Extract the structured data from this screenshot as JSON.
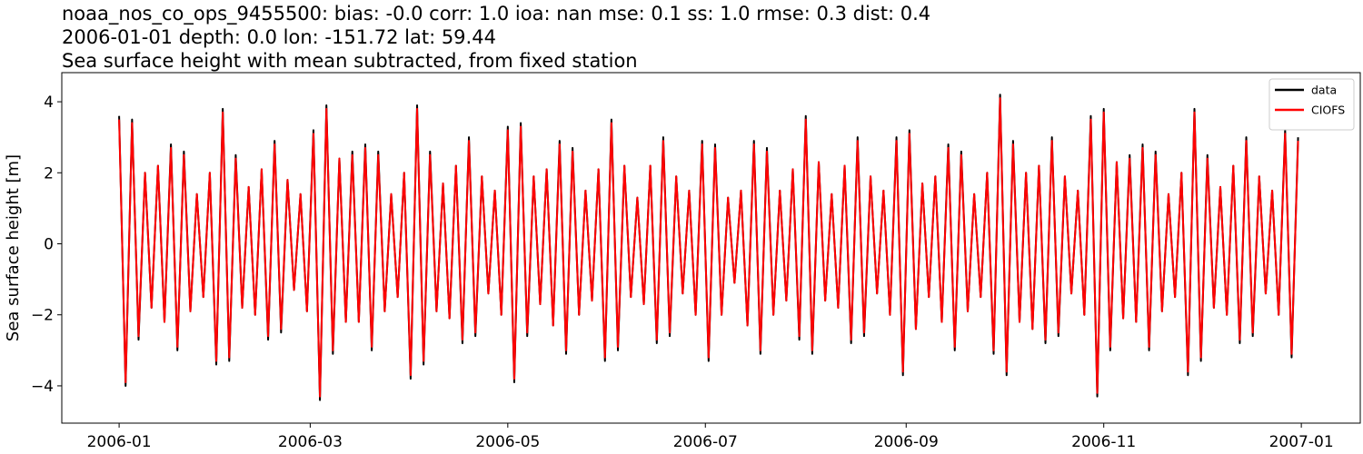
{
  "chart_data": {
    "type": "line",
    "title": [
      "noaa_nos_co_ops_9455500: bias: -0.0  corr: 1.0  ioa: nan  mse: 0.1  ss: 1.0  rmse: 0.3  dist: 0.4",
      "2006-01-01 depth: 0.0 lon: -151.72 lat: 59.44",
      "Sea surface height with mean subtracted, from fixed station"
    ],
    "y_label": "Sea surface height [m]",
    "x": [
      0,
      2,
      4,
      6,
      8,
      10,
      12,
      14,
      16,
      18,
      20,
      22,
      24,
      26,
      28,
      30,
      32,
      34,
      36,
      38,
      40,
      42,
      44,
      46,
      48,
      50,
      52,
      54,
      56,
      58,
      60,
      62,
      64,
      66,
      68,
      70,
      72,
      74,
      76,
      78,
      80,
      82,
      84,
      86,
      88,
      90,
      92,
      94,
      96,
      98,
      100,
      102,
      104,
      106,
      108,
      110,
      112,
      114,
      116,
      118,
      120,
      122,
      124,
      126,
      128,
      130,
      132,
      134,
      136,
      138,
      140,
      142,
      144,
      146,
      148,
      150,
      152,
      154,
      156,
      158,
      160,
      162,
      164,
      166,
      168,
      170,
      172,
      174,
      176,
      178,
      180,
      182,
      184,
      186,
      188,
      190,
      192,
      194,
      196,
      198,
      200,
      202,
      204,
      206,
      208,
      210,
      212,
      214,
      216,
      218,
      220,
      222,
      224,
      226,
      228,
      230,
      232,
      234,
      236,
      238,
      240,
      242,
      244,
      246,
      248,
      250,
      252,
      254,
      256,
      258,
      260,
      262,
      264,
      266,
      268,
      270,
      272,
      274,
      276,
      278,
      280,
      282,
      284,
      286,
      288,
      290,
      292,
      294,
      296,
      298,
      300,
      302,
      304,
      306,
      308,
      310,
      312,
      314,
      316,
      318,
      320,
      322,
      324,
      326,
      328,
      330,
      332,
      334,
      336,
      338,
      340,
      342,
      344,
      346,
      348,
      350,
      352,
      354,
      356,
      358,
      360,
      362,
      364
    ],
    "series": [
      {
        "name": "data",
        "color": "#000000",
        "values": [
          3.6,
          -4.0,
          3.5,
          -2.7,
          2.0,
          -1.8,
          2.2,
          -2.2,
          2.8,
          -3.0,
          2.6,
          -1.9,
          1.4,
          -1.5,
          2.0,
          -3.4,
          3.8,
          -3.3,
          2.5,
          -1.8,
          1.6,
          -2.0,
          2.1,
          -2.7,
          2.9,
          -2.5,
          1.8,
          -1.3,
          1.4,
          -1.9,
          3.2,
          -4.4,
          3.9,
          -3.1,
          2.4,
          -2.2,
          2.6,
          -2.2,
          2.8,
          -3.0,
          2.6,
          -1.9,
          1.4,
          -1.5,
          2.0,
          -3.8,
          3.9,
          -3.4,
          2.6,
          -1.9,
          1.7,
          -2.1,
          2.2,
          -2.8,
          3.0,
          -2.6,
          1.9,
          -1.4,
          1.5,
          -2.0,
          3.3,
          -3.9,
          3.4,
          -2.6,
          1.9,
          -1.7,
          2.1,
          -2.3,
          2.9,
          -3.1,
          2.7,
          -2.0,
          1.5,
          -1.6,
          2.1,
          -3.3,
          3.5,
          -3.0,
          2.2,
          -1.5,
          1.3,
          -1.7,
          2.2,
          -2.8,
          3.0,
          -2.6,
          1.9,
          -1.4,
          1.5,
          -2.0,
          2.9,
          -3.3,
          2.8,
          -2.0,
          1.3,
          -1.1,
          1.5,
          -2.3,
          2.9,
          -3.1,
          2.7,
          -2.0,
          1.5,
          -1.6,
          2.1,
          -2.7,
          3.6,
          -3.1,
          2.3,
          -1.6,
          1.4,
          -1.8,
          2.2,
          -2.8,
          3.0,
          -2.6,
          1.9,
          -1.4,
          1.5,
          -2.0,
          3.0,
          -3.7,
          3.2,
          -2.4,
          1.7,
          -1.5,
          1.9,
          -2.2,
          2.8,
          -3.0,
          2.6,
          -1.9,
          1.4,
          -1.5,
          2.0,
          -3.1,
          4.2,
          -3.7,
          2.9,
          -2.2,
          2.0,
          -2.4,
          2.2,
          -2.8,
          3.0,
          -2.6,
          1.9,
          -1.4,
          1.5,
          -2.0,
          3.6,
          -4.3,
          3.8,
          -3.0,
          2.3,
          -2.1,
          2.5,
          -2.2,
          2.8,
          -3.0,
          2.6,
          -1.9,
          1.4,
          -1.5,
          2.0,
          -3.7,
          3.8,
          -3.3,
          2.5,
          -1.8,
          1.6,
          -2.0,
          2.2,
          -2.8,
          3.0,
          -2.6,
          1.9,
          -1.4,
          1.5,
          -2.0,
          3.2,
          -3.2,
          3.0
        ]
      },
      {
        "name": "CIOFS",
        "color": "#ff0000",
        "values": [
          3.5,
          -3.9,
          3.4,
          -2.6,
          2.0,
          -1.8,
          2.2,
          -2.2,
          2.7,
          -2.9,
          2.5,
          -1.9,
          1.4,
          -1.5,
          2.0,
          -3.3,
          3.7,
          -3.2,
          2.4,
          -1.8,
          1.6,
          -2.0,
          2.1,
          -2.6,
          2.8,
          -2.4,
          1.8,
          -1.3,
          1.4,
          -1.9,
          3.1,
          -4.3,
          3.8,
          -3.0,
          2.4,
          -2.2,
          2.5,
          -2.2,
          2.7,
          -2.9,
          2.5,
          -1.9,
          1.4,
          -1.5,
          2.0,
          -3.7,
          3.8,
          -3.3,
          2.5,
          -1.9,
          1.7,
          -2.1,
          2.2,
          -2.7,
          2.9,
          -2.5,
          1.9,
          -1.4,
          1.5,
          -2.0,
          3.2,
          -3.8,
          3.3,
          -2.5,
          1.9,
          -1.7,
          2.1,
          -2.3,
          2.8,
          -3.0,
          2.6,
          -2.0,
          1.5,
          -1.6,
          2.1,
          -3.2,
          3.4,
          -2.9,
          2.2,
          -1.5,
          1.3,
          -1.7,
          2.2,
          -2.7,
          2.9,
          -2.5,
          1.9,
          -1.4,
          1.5,
          -2.0,
          2.8,
          -3.2,
          2.7,
          -2.0,
          1.3,
          -1.1,
          1.5,
          -2.3,
          2.8,
          -3.0,
          2.6,
          -2.0,
          1.5,
          -1.6,
          2.1,
          -2.6,
          3.5,
          -3.0,
          2.3,
          -1.6,
          1.4,
          -1.8,
          2.2,
          -2.7,
          2.9,
          -2.5,
          1.9,
          -1.4,
          1.5,
          -2.0,
          2.9,
          -3.6,
          3.1,
          -2.4,
          1.7,
          -1.5,
          1.9,
          -2.2,
          2.7,
          -2.9,
          2.5,
          -1.9,
          1.4,
          -1.5,
          2.0,
          -3.0,
          4.1,
          -3.6,
          2.8,
          -2.2,
          2.0,
          -2.4,
          2.2,
          -2.7,
          2.9,
          -2.5,
          1.9,
          -1.4,
          1.5,
          -2.0,
          3.5,
          -4.2,
          3.7,
          -2.9,
          2.3,
          -2.1,
          2.4,
          -2.2,
          2.7,
          -2.9,
          2.5,
          -1.9,
          1.4,
          -1.5,
          2.0,
          -3.6,
          3.7,
          -3.2,
          2.4,
          -1.8,
          1.6,
          -2.0,
          2.2,
          -2.7,
          2.9,
          -2.5,
          1.9,
          -1.4,
          1.5,
          -2.0,
          3.1,
          -3.1,
          2.9
        ]
      }
    ],
    "xlim": [
      -17.7,
      383.2
    ],
    "xticks": [
      {
        "value": 0,
        "label": "2006-01"
      },
      {
        "value": 59,
        "label": "2006-03"
      },
      {
        "value": 120,
        "label": "2006-05"
      },
      {
        "value": 181,
        "label": "2006-07"
      },
      {
        "value": 243,
        "label": "2006-09"
      },
      {
        "value": 304,
        "label": "2006-11"
      },
      {
        "value": 365,
        "label": "2007-01"
      }
    ],
    "ylim": [
      -5.05,
      4.82
    ],
    "yticks": [
      {
        "value": -4,
        "label": "−4"
      },
      {
        "value": -2,
        "label": "−2"
      },
      0,
      2,
      4
    ],
    "legend": "upper right",
    "grid": false
  }
}
